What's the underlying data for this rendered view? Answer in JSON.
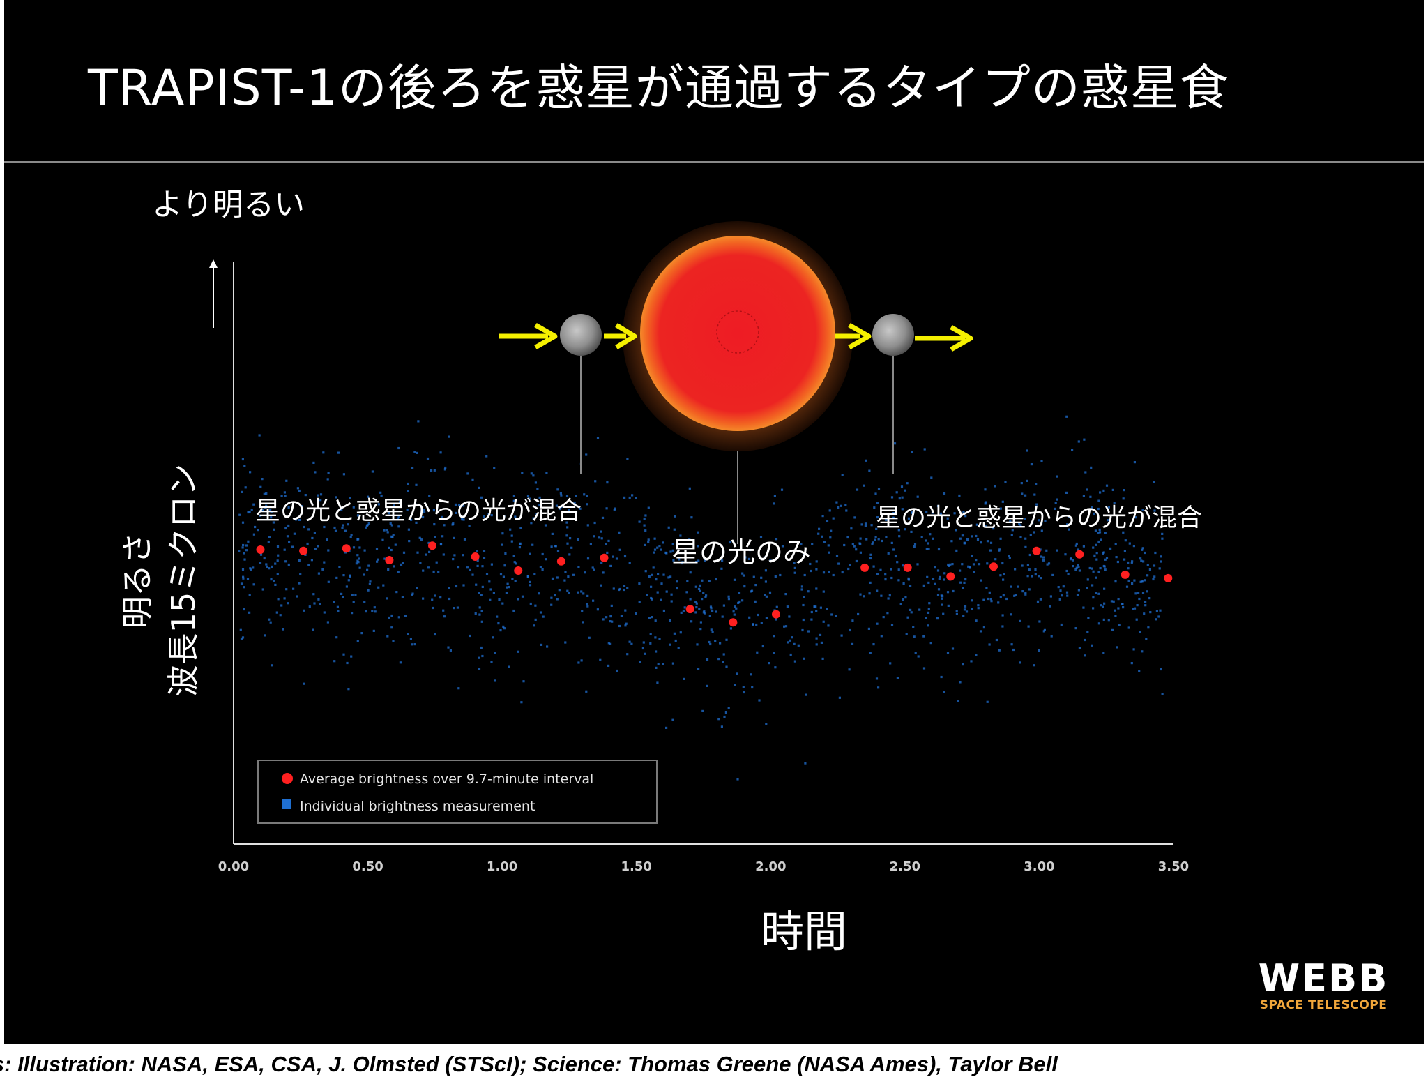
{
  "slide": {
    "title": "TRAPIST-1の後ろを惑星が通過するタイプの惑星食",
    "credits": "its: Illustration: NASA, ESA, CSA, J. Olmsted (STScI); Science: Thomas Greene (NASA Ames), Taylor Bell",
    "logo": {
      "name": "WEBB",
      "subtitle": "SPACE TELESCOPE"
    }
  },
  "annotations": {
    "brighter": "より明るい",
    "mixed_left": "星の光と惑星からの光が混合",
    "star_only": "星の光のみ",
    "mixed_right": "星の光と惑星からの光が混合"
  },
  "chart_data": {
    "type": "scatter",
    "xlabel": "時間",
    "ylabel_line1": "明るさ",
    "ylabel_line2": "波長15ミクロン",
    "xlim": [
      0,
      3.5
    ],
    "ylim": [
      0,
      10
    ],
    "x_ticks": [
      "0.00",
      "0.50",
      "1.00",
      "1.50",
      "2.00",
      "2.50",
      "3.00",
      "3.50"
    ],
    "grid": false,
    "legend_position": "bottom-left",
    "legend": [
      {
        "label": "Average brightness over 9.7-minute interval",
        "color": "#ff2020",
        "marker": "circle"
      },
      {
        "label": "Individual brightness measurement",
        "color": "#1f6fd1",
        "marker": "square"
      }
    ],
    "series": [
      {
        "name": "Average brightness over 9.7-minute interval",
        "color": "#ff2020",
        "x": [
          0.1,
          0.26,
          0.42,
          0.58,
          0.74,
          0.9,
          1.06,
          1.22,
          1.38,
          1.7,
          1.86,
          2.02,
          2.35,
          2.51,
          2.67,
          2.83,
          2.99,
          3.15,
          3.32,
          3.48
        ],
        "y": [
          5.06,
          5.04,
          5.08,
          4.88,
          5.13,
          4.94,
          4.7,
          4.86,
          4.92,
          4.04,
          3.81,
          3.95,
          4.75,
          4.75,
          4.6,
          4.77,
          5.04,
          4.98,
          4.63,
          4.57
        ]
      },
      {
        "name": "Individual brightness measurement",
        "color": "#1f6fd1",
        "description_of_spread": "approximately 1400 points scattered around the averages (y ≈ 1–9)"
      }
    ]
  },
  "colors": {
    "background": "#000000",
    "arrow": "#f5f000",
    "star_core": "#ee2020",
    "star_halo": "#3a1a08",
    "planet": "#9a9a9a"
  }
}
